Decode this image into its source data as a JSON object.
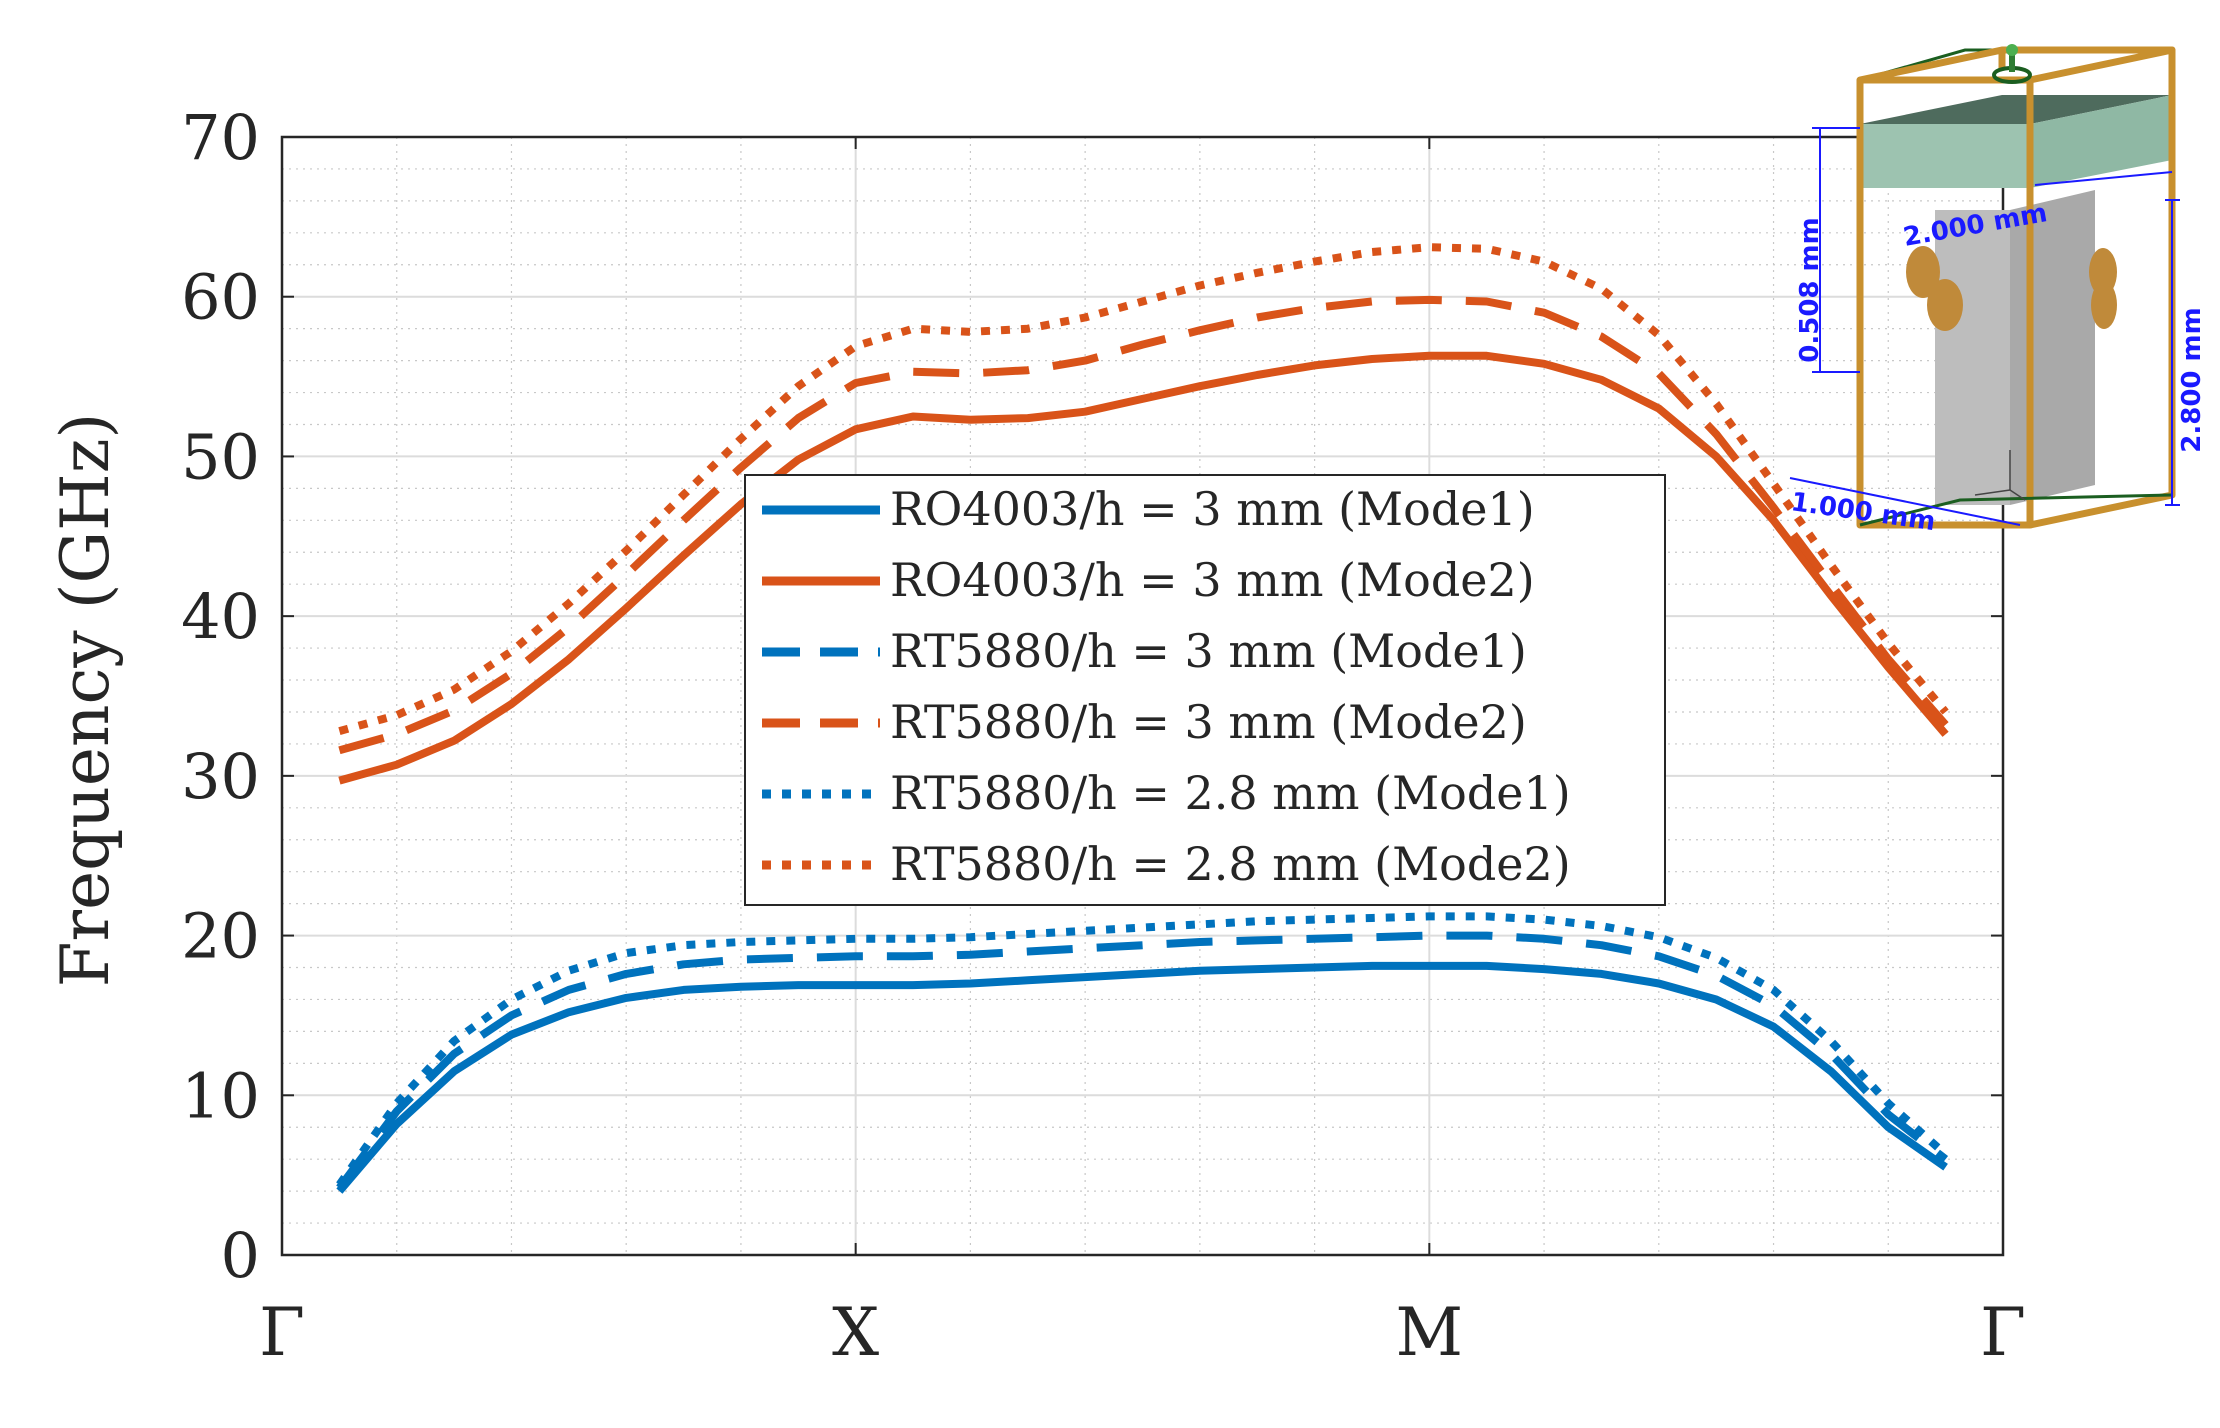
{
  "chart_data": {
    "type": "line",
    "title": "",
    "xlabel": "",
    "ylabel": "Frequency (GHz)",
    "ylim": [
      0,
      70
    ],
    "yticks": [
      0,
      10,
      20,
      30,
      40,
      50,
      60,
      70
    ],
    "xlim": [
      0,
      3
    ],
    "xticks": [
      0,
      1,
      2,
      3
    ],
    "xtick_labels": [
      "Γ",
      "X",
      "M",
      "Γ"
    ],
    "grid": true,
    "minor_grid": true,
    "legend_position": "center",
    "x": [
      0.1,
      0.2,
      0.3,
      0.4,
      0.5,
      0.6,
      0.7,
      0.8,
      0.9,
      1.0,
      1.1,
      1.2,
      1.3,
      1.4,
      1.5,
      1.6,
      1.7,
      1.8,
      1.9,
      2.0,
      2.1,
      2.2,
      2.3,
      2.4,
      2.5,
      2.6,
      2.7,
      2.8,
      2.9
    ],
    "series": [
      {
        "name": "RO4003/h = 3 mm (Mode1)",
        "color": "#0072BD",
        "style": "solid",
        "values": [
          4.0,
          8.2,
          11.5,
          13.8,
          15.2,
          16.1,
          16.6,
          16.8,
          16.9,
          16.9,
          16.9,
          17.0,
          17.2,
          17.4,
          17.6,
          17.8,
          17.9,
          18.0,
          18.1,
          18.1,
          18.1,
          17.9,
          17.6,
          17.0,
          16.0,
          14.3,
          11.5,
          8.0,
          5.5
        ]
      },
      {
        "name": "RO4003/h = 3 mm (Mode2)",
        "color": "#D95319",
        "style": "solid",
        "values": [
          29.7,
          30.7,
          32.2,
          34.5,
          37.3,
          40.5,
          43.8,
          47.0,
          49.8,
          51.7,
          52.5,
          52.3,
          52.4,
          52.8,
          53.6,
          54.4,
          55.1,
          55.7,
          56.1,
          56.3,
          56.3,
          55.8,
          54.8,
          53.0,
          50.0,
          46.0,
          41.3,
          36.8,
          32.6
        ]
      },
      {
        "name": "RT5880/h = 3 mm (Mode1)",
        "color": "#0072BD",
        "style": "dashed",
        "values": [
          4.2,
          9.0,
          12.6,
          15.0,
          16.6,
          17.6,
          18.2,
          18.5,
          18.6,
          18.7,
          18.7,
          18.8,
          19.0,
          19.2,
          19.4,
          19.6,
          19.7,
          19.8,
          19.9,
          20.0,
          20.0,
          19.8,
          19.4,
          18.7,
          17.5,
          15.6,
          12.6,
          8.8,
          6.0
        ]
      },
      {
        "name": "RT5880/h = 3 mm (Mode2)",
        "color": "#D95319",
        "style": "dashed",
        "values": [
          31.6,
          32.6,
          34.1,
          36.4,
          39.3,
          42.6,
          46.0,
          49.3,
          52.4,
          54.6,
          55.3,
          55.2,
          55.4,
          56.0,
          57.0,
          57.9,
          58.7,
          59.3,
          59.7,
          59.8,
          59.7,
          59.0,
          57.5,
          55.2,
          51.4,
          46.8,
          42.0,
          37.3,
          33.2
        ]
      },
      {
        "name": "RT5880/h = 2.8 mm (Mode1)",
        "color": "#0072BD",
        "style": "dotted",
        "values": [
          4.4,
          9.5,
          13.4,
          16.0,
          17.8,
          18.9,
          19.4,
          19.6,
          19.7,
          19.8,
          19.8,
          19.9,
          20.1,
          20.3,
          20.5,
          20.7,
          20.9,
          21.0,
          21.1,
          21.2,
          21.2,
          21.0,
          20.6,
          19.9,
          18.6,
          16.6,
          13.4,
          9.5,
          6.3
        ]
      },
      {
        "name": "RT5880/h = 2.8 mm (Mode2)",
        "color": "#D95319",
        "style": "dotted",
        "values": [
          32.8,
          33.8,
          35.4,
          37.8,
          40.8,
          44.1,
          47.6,
          51.1,
          54.4,
          56.9,
          58.0,
          57.8,
          58.0,
          58.7,
          59.7,
          60.7,
          61.5,
          62.2,
          62.8,
          63.1,
          63.0,
          62.2,
          60.5,
          57.6,
          53.3,
          48.3,
          43.2,
          38.3,
          34.0
        ]
      }
    ]
  },
  "inset": {
    "dims": [
      "0.508 mm",
      "2.000 mm",
      "2.800 mm",
      "1.000 mm"
    ],
    "colors": {
      "frame": "#C8902E",
      "substrate": "#9DC3B0",
      "pillar": "#BDBDBD",
      "dim": "#1a1aff"
    }
  }
}
